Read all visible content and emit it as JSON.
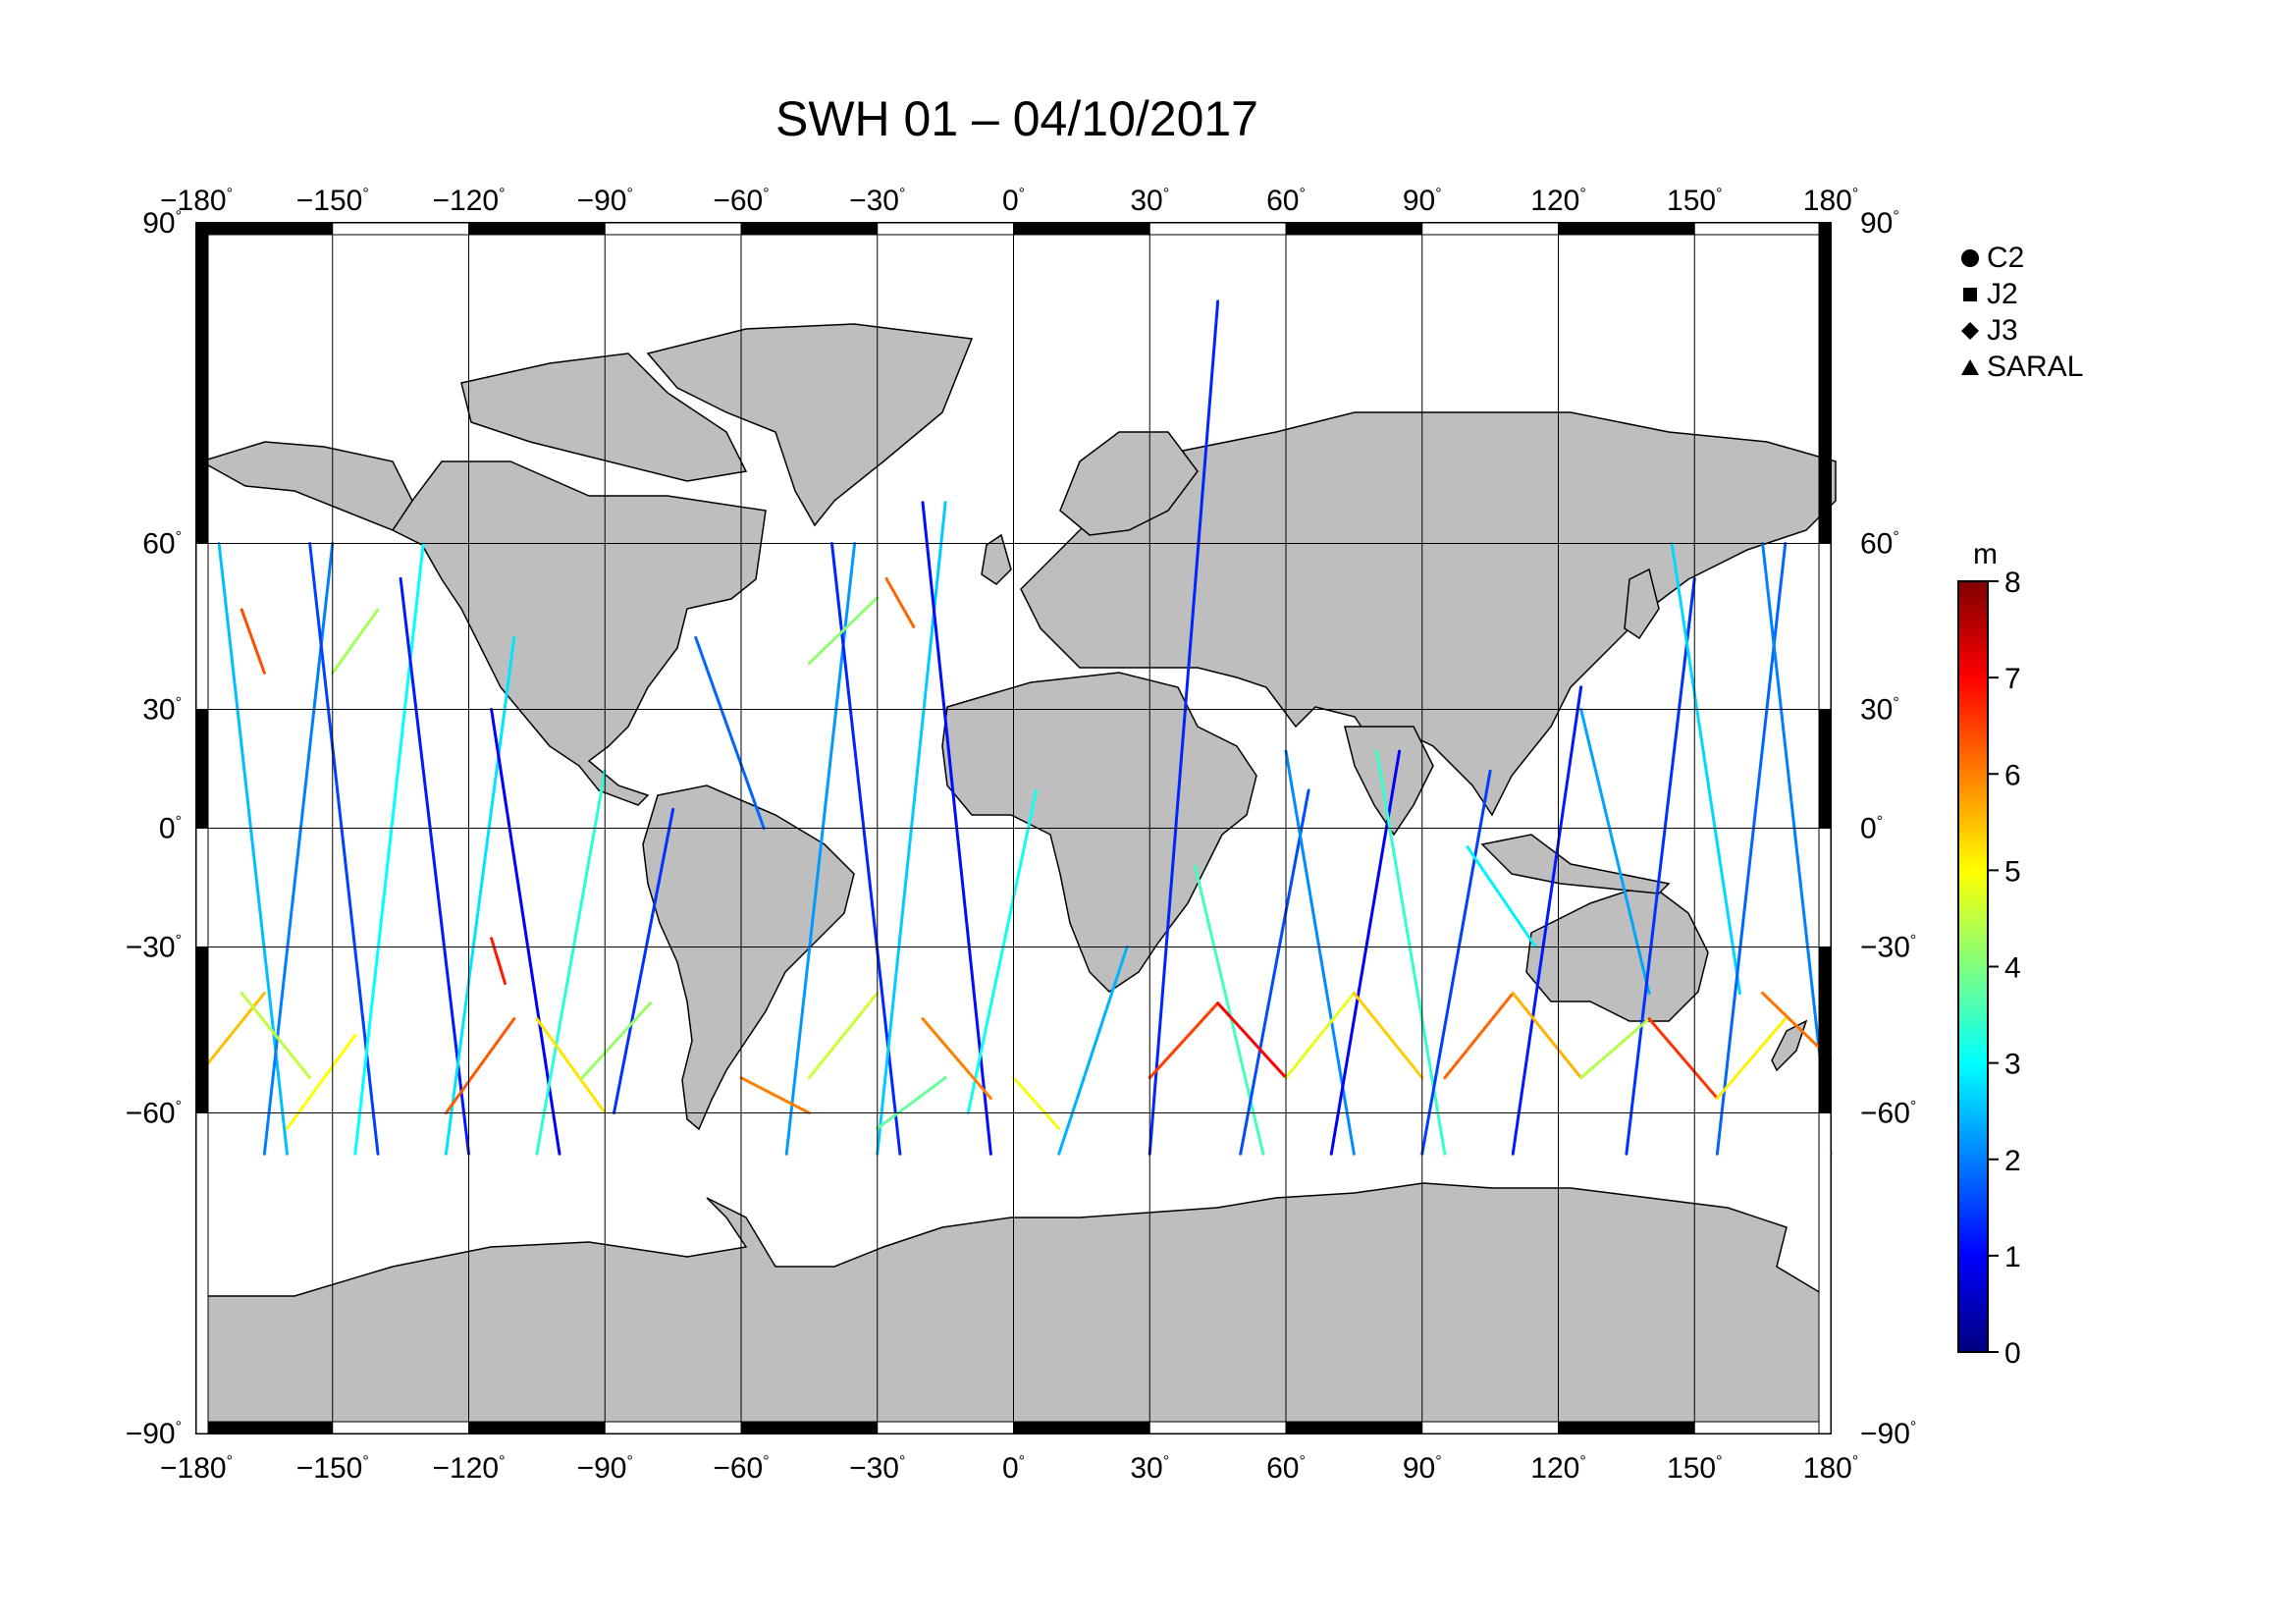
{
  "title": "SWH 01 – 04/10/2017",
  "map": {
    "lon_ticks": [
      -180,
      -150,
      -120,
      -90,
      -60,
      -30,
      0,
      30,
      60,
      90,
      120,
      150,
      180
    ],
    "lat_ticks": [
      90,
      60,
      30,
      0,
      -30,
      -60,
      -90
    ],
    "degree_symbol": "°",
    "land_color": "#bebebe",
    "ocean_color": "#ffffff"
  },
  "legend": {
    "items": [
      {
        "label": "C2",
        "symbol": "circle"
      },
      {
        "label": "J2",
        "symbol": "square"
      },
      {
        "label": "J3",
        "symbol": "diamond"
      },
      {
        "label": "SARAL",
        "symbol": "triangle"
      }
    ]
  },
  "colorbar": {
    "unit": "m",
    "min": 0,
    "max": 8,
    "ticks": [
      0,
      1,
      2,
      3,
      4,
      5,
      6,
      7,
      8
    ],
    "colors": [
      "#00007f",
      "#0000ff",
      "#007fff",
      "#00ffff",
      "#7fff7f",
      "#ffff00",
      "#ff7f00",
      "#ff0000",
      "#7f0000"
    ]
  },
  "chart_data": {
    "type": "scatter",
    "title": "SWH 01 – 04/10/2017",
    "xlim": [
      -180,
      180
    ],
    "ylim": [
      -90,
      90
    ],
    "grid": true,
    "legend_placement": "right",
    "color_variable": "SWH",
    "color_unit": "m",
    "color_range": [
      0,
      8
    ],
    "tracks": [
      {
        "lon": [
          -175,
          -160
        ],
        "lat": [
          60,
          -65
        ],
        "swh": 2.5
      },
      {
        "lon": [
          -165,
          -150
        ],
        "lat": [
          -65,
          60
        ],
        "swh": 2.0
      },
      {
        "lon": [
          -155,
          -140
        ],
        "lat": [
          60,
          -65
        ],
        "swh": 1.5
      },
      {
        "lon": [
          -145,
          -130
        ],
        "lat": [
          -65,
          60
        ],
        "swh": 3.0
      },
      {
        "lon": [
          -135,
          -120
        ],
        "lat": [
          55,
          -65
        ],
        "swh": 1.2
      },
      {
        "lon": [
          -125,
          -110
        ],
        "lat": [
          -65,
          45
        ],
        "swh": 2.8
      },
      {
        "lon": [
          -115,
          -100
        ],
        "lat": [
          30,
          -65
        ],
        "swh": 1.0
      },
      {
        "lon": [
          -105,
          -90
        ],
        "lat": [
          -65,
          15
        ],
        "swh": 3.3
      },
      {
        "lon": [
          -88,
          -75
        ],
        "lat": [
          -60,
          5
        ],
        "swh": 1.4
      },
      {
        "lon": [
          -70,
          -55
        ],
        "lat": [
          45,
          0
        ],
        "swh": 1.8
      },
      {
        "lon": [
          -50,
          -35
        ],
        "lat": [
          -65,
          60
        ],
        "swh": 2.2
      },
      {
        "lon": [
          -40,
          -25
        ],
        "lat": [
          60,
          -65
        ],
        "swh": 1.3
      },
      {
        "lon": [
          -30,
          -15
        ],
        "lat": [
          -65,
          65
        ],
        "swh": 2.6
      },
      {
        "lon": [
          -20,
          -5
        ],
        "lat": [
          65,
          -65
        ],
        "swh": 1.1
      },
      {
        "lon": [
          -10,
          5
        ],
        "lat": [
          -60,
          10
        ],
        "swh": 3.1
      },
      {
        "lon": [
          10,
          25
        ],
        "lat": [
          -65,
          -30
        ],
        "swh": 2.4
      },
      {
        "lon": [
          30,
          45
        ],
        "lat": [
          -65,
          80
        ],
        "swh": 1.3
      },
      {
        "lon": [
          40,
          55
        ],
        "lat": [
          -10,
          -65
        ],
        "swh": 3.5
      },
      {
        "lon": [
          50,
          65
        ],
        "lat": [
          -65,
          10
        ],
        "swh": 1.6
      },
      {
        "lon": [
          60,
          75
        ],
        "lat": [
          20,
          -65
        ],
        "swh": 2.1
      },
      {
        "lon": [
          70,
          85
        ],
        "lat": [
          -65,
          20
        ],
        "swh": 1.0
      },
      {
        "lon": [
          80,
          95
        ],
        "lat": [
          20,
          -65
        ],
        "swh": 3.4
      },
      {
        "lon": [
          90,
          105
        ],
        "lat": [
          -65,
          15
        ],
        "swh": 1.5
      },
      {
        "lon": [
          100,
          115
        ],
        "lat": [
          -5,
          -30
        ],
        "swh": 2.9
      },
      {
        "lon": [
          110,
          125
        ],
        "lat": [
          -65,
          35
        ],
        "swh": 1.2
      },
      {
        "lon": [
          125,
          140
        ],
        "lat": [
          30,
          -40
        ],
        "swh": 2.3
      },
      {
        "lon": [
          135,
          150
        ],
        "lat": [
          -65,
          55
        ],
        "swh": 1.4
      },
      {
        "lon": [
          145,
          160
        ],
        "lat": [
          60,
          -40
        ],
        "swh": 2.7
      },
      {
        "lon": [
          155,
          170
        ],
        "lat": [
          -65,
          60
        ],
        "swh": 1.8
      },
      {
        "lon": [
          165,
          180
        ],
        "lat": [
          60,
          -65
        ],
        "swh": 2.0
      },
      {
        "lon": [
          -180,
          -165
        ],
        "lat": [
          -55,
          -40
        ],
        "swh": 5.5
      },
      {
        "lon": [
          -170,
          -155
        ],
        "lat": [
          -40,
          -55
        ],
        "swh": 4.5
      },
      {
        "lon": [
          -160,
          -145
        ],
        "lat": [
          -62,
          -48
        ],
        "swh": 5.0
      },
      {
        "lon": [
          -125,
          -110
        ],
        "lat": [
          -60,
          -45
        ],
        "swh": 6.3
      },
      {
        "lon": [
          -105,
          -90
        ],
        "lat": [
          -45,
          -60
        ],
        "swh": 5.2
      },
      {
        "lon": [
          -95,
          -80
        ],
        "lat": [
          -55,
          -42
        ],
        "swh": 4.2
      },
      {
        "lon": [
          -115,
          -112
        ],
        "lat": [
          -28,
          -38
        ],
        "swh": 6.8
      },
      {
        "lon": [
          -45,
          -30
        ],
        "lat": [
          -55,
          -40
        ],
        "swh": 4.6
      },
      {
        "lon": [
          -20,
          -5
        ],
        "lat": [
          -45,
          -58
        ],
        "swh": 6.0
      },
      {
        "lon": [
          30,
          45
        ],
        "lat": [
          -55,
          -42
        ],
        "swh": 6.5
      },
      {
        "lon": [
          45,
          60
        ],
        "lat": [
          -42,
          -55
        ],
        "swh": 7.0
      },
      {
        "lon": [
          60,
          75
        ],
        "lat": [
          -55,
          -40
        ],
        "swh": 4.8
      },
      {
        "lon": [
          75,
          90
        ],
        "lat": [
          -40,
          -55
        ],
        "swh": 5.4
      },
      {
        "lon": [
          95,
          110
        ],
        "lat": [
          -55,
          -40
        ],
        "swh": 6.2
      },
      {
        "lon": [
          110,
          125
        ],
        "lat": [
          -40,
          -55
        ],
        "swh": 5.6
      },
      {
        "lon": [
          125,
          140
        ],
        "lat": [
          -55,
          -45
        ],
        "swh": 4.4
      },
      {
        "lon": [
          140,
          155
        ],
        "lat": [
          -45,
          -58
        ],
        "swh": 6.6
      },
      {
        "lon": [
          155,
          170
        ],
        "lat": [
          -58,
          -45
        ],
        "swh": 5.1
      },
      {
        "lon": [
          165,
          180
        ],
        "lat": [
          -40,
          -52
        ],
        "swh": 6.1
      },
      {
        "lon": [
          -170,
          -165
        ],
        "lat": [
          50,
          38
        ],
        "swh": 6.4
      },
      {
        "lon": [
          -150,
          -140
        ],
        "lat": [
          38,
          50
        ],
        "swh": 4.3
      },
      {
        "lon": [
          -28,
          -22
        ],
        "lat": [
          55,
          47
        ],
        "swh": 6.2
      },
      {
        "lon": [
          -45,
          -30
        ],
        "lat": [
          40,
          52
        ],
        "swh": 4.1
      },
      {
        "lon": [
          -60,
          -45
        ],
        "lat": [
          -55,
          -60
        ],
        "swh": 6.0
      },
      {
        "lon": [
          -30,
          -15
        ],
        "lat": [
          -62,
          -55
        ],
        "swh": 3.8
      },
      {
        "lon": [
          0,
          10
        ],
        "lat": [
          -55,
          -62
        ],
        "swh": 4.9
      }
    ]
  }
}
